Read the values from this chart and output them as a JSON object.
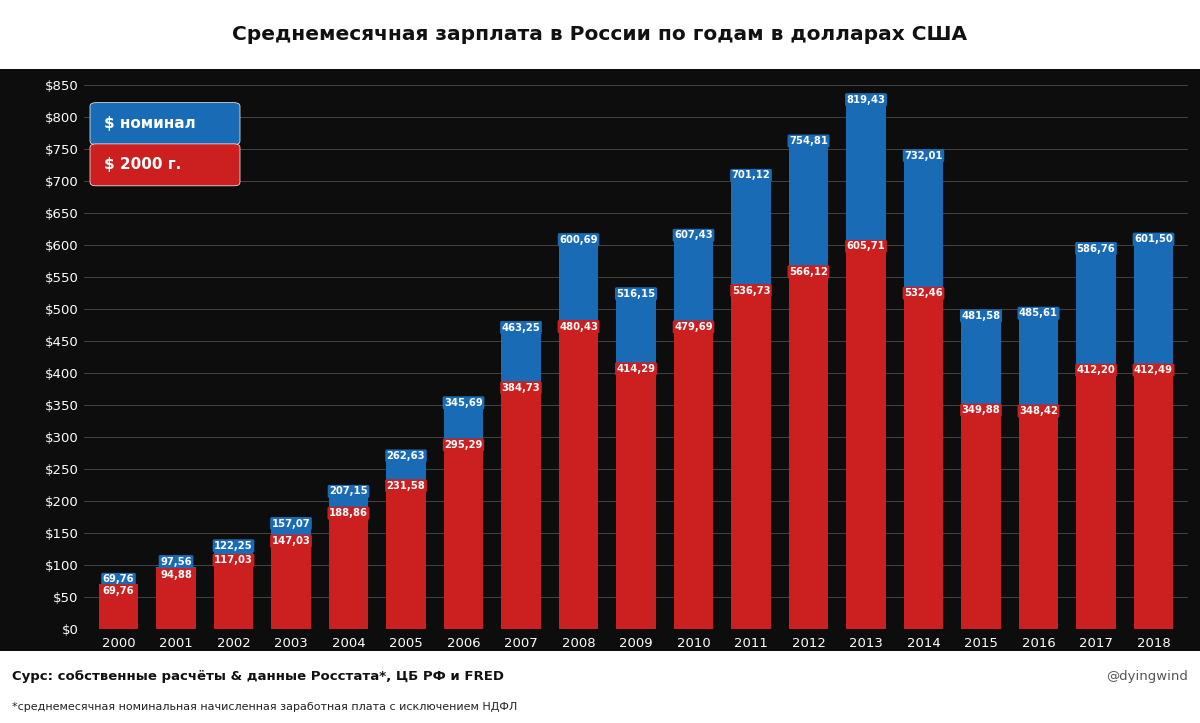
{
  "years": [
    2000,
    2001,
    2002,
    2003,
    2004,
    2005,
    2006,
    2007,
    2008,
    2009,
    2010,
    2011,
    2012,
    2013,
    2014,
    2015,
    2016,
    2017,
    2018
  ],
  "nominal": [
    69.76,
    97.56,
    122.25,
    157.07,
    207.15,
    262.63,
    345.69,
    463.25,
    600.69,
    516.15,
    607.43,
    701.12,
    754.81,
    819.43,
    732.01,
    481.58,
    485.61,
    586.76,
    601.5
  ],
  "real2000": [
    69.76,
    94.88,
    117.03,
    147.03,
    188.86,
    231.58,
    295.29,
    384.73,
    480.43,
    414.29,
    479.69,
    536.73,
    566.12,
    605.71,
    532.46,
    349.88,
    348.42,
    412.2,
    412.49
  ],
  "title": "Среднемесячная зарплата в России по годам в долларах США",
  "legend_nominal": "$ номинал",
  "legend_real": "$ 2000 г.",
  "source_text": "Сурс: собственные расчёты & данные Росстата*, ЦБ РФ и FRED",
  "footnote_text": "*среднемесячная номинальная начисленная заработная плата с исключением НДФЛ",
  "watermark": "@dyingwind",
  "bg_color": "#0d0d0d",
  "bar_black_color": "#111111",
  "bar_nominal_color": "#1a6bb5",
  "bar_real_color": "#cc1f1f",
  "text_color": "#ffffff",
  "grid_color": "#444444",
  "ylim": [
    0,
    870
  ],
  "yticks": [
    0,
    50,
    100,
    150,
    200,
    250,
    300,
    350,
    400,
    450,
    500,
    550,
    600,
    650,
    700,
    750,
    800,
    850
  ]
}
